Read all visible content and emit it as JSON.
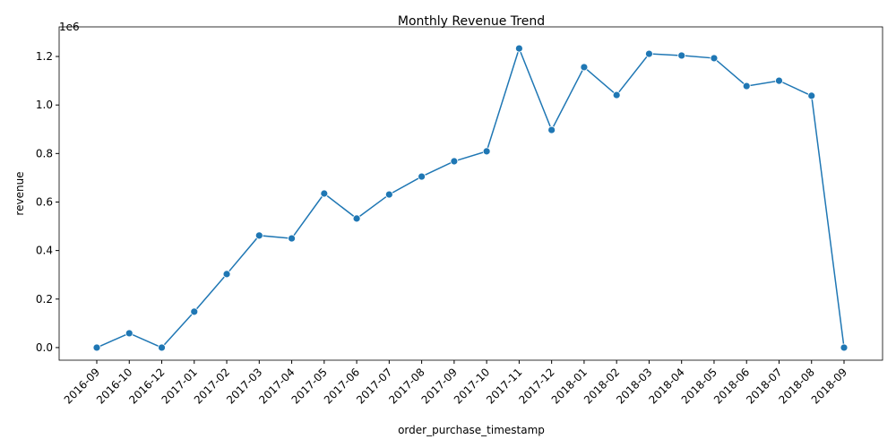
{
  "chart_data": {
    "type": "line",
    "title": "Monthly Revenue Trend",
    "x_label": "order_purchase_timestamp",
    "y_label": "revenue",
    "y_offset_label": "1e6",
    "categories": [
      "2016-09",
      "2016-10",
      "2016-12",
      "2017-01",
      "2017-02",
      "2017-03",
      "2017-04",
      "2017-05",
      "2017-06",
      "2017-07",
      "2017-08",
      "2017-09",
      "2017-10",
      "2017-11",
      "2017-12",
      "2018-01",
      "2018-02",
      "2018-03",
      "2018-04",
      "2018-05",
      "2018-06",
      "2018-07",
      "2018-08",
      "2018-09"
    ],
    "values": [
      0,
      0.059,
      0,
      0.148,
      0.303,
      0.462,
      0.45,
      0.635,
      0.532,
      0.631,
      0.705,
      0.768,
      0.809,
      1.233,
      0.897,
      1.156,
      1.041,
      1.211,
      1.204,
      1.193,
      1.078,
      1.1,
      1.038,
      0
    ],
    "color": "#1f77b4",
    "ylim": [
      -0.052,
      1.322
    ],
    "yticks": [
      {
        "value": 0,
        "label": "0.0"
      },
      0.2,
      0.4,
      0.6,
      0.8,
      {
        "value": 1,
        "label": "1.0"
      },
      1.2
    ],
    "grid": false
  }
}
